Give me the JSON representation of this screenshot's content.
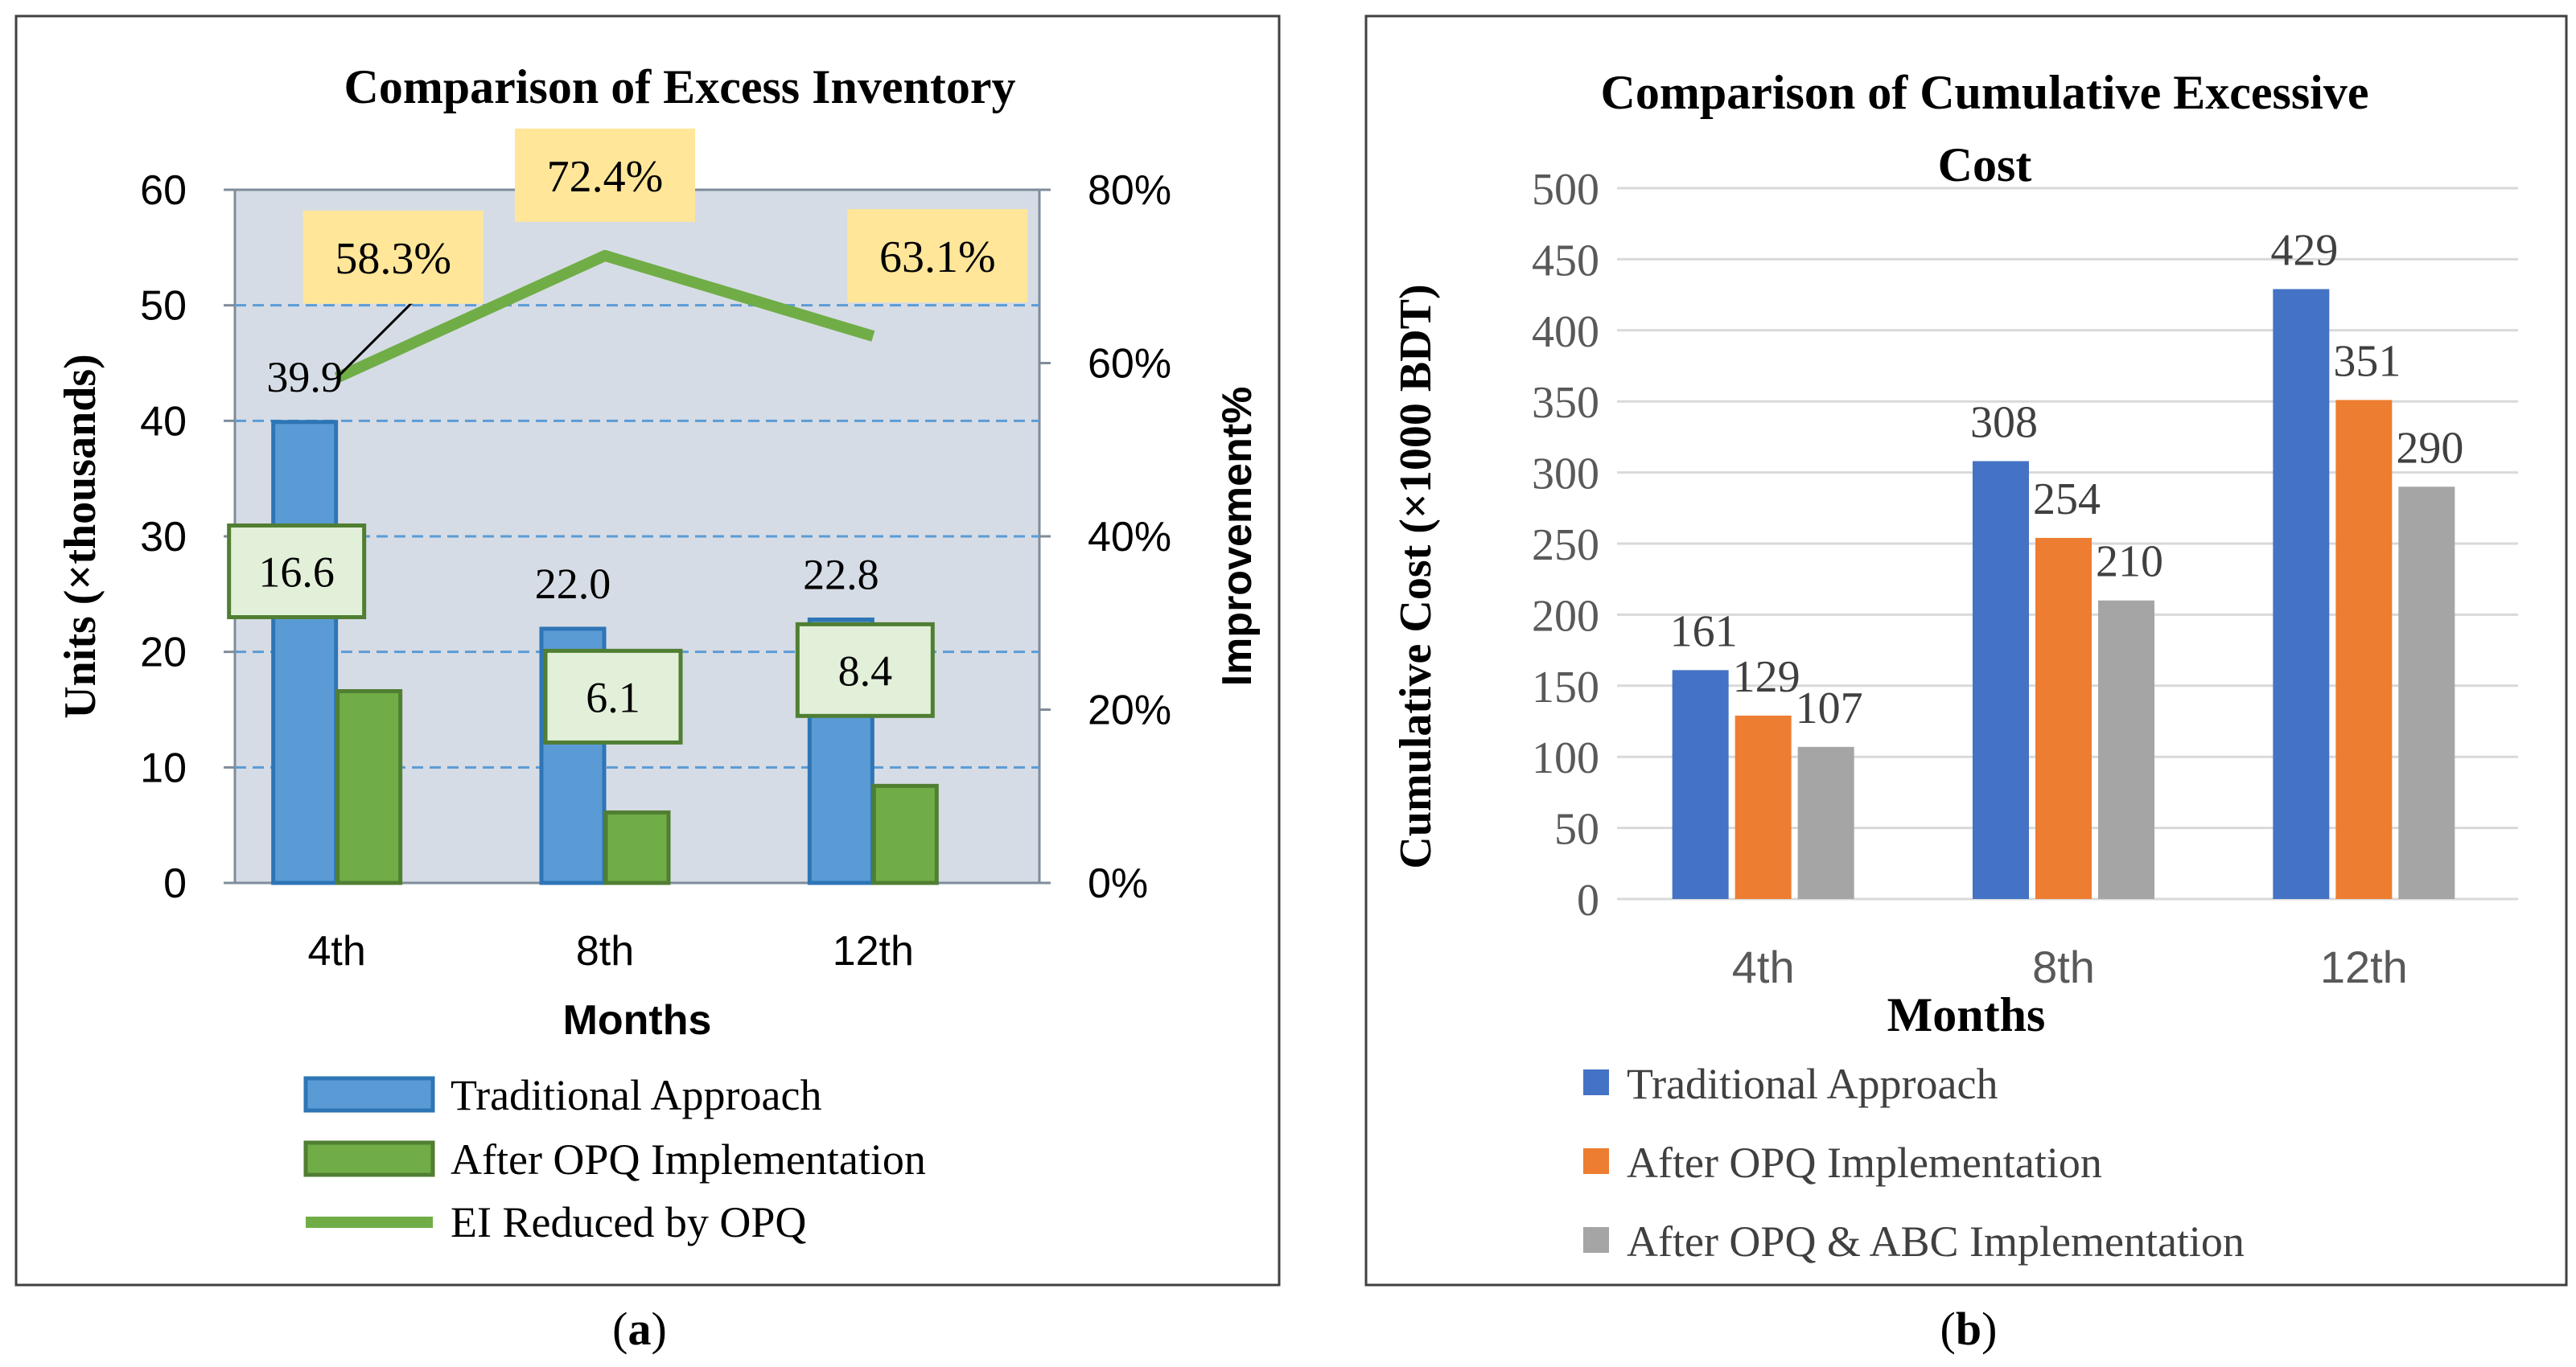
{
  "chart_data": [
    {
      "panel": "a",
      "panel_label_open": "(",
      "panel_label_letter": "a",
      "panel_label_close": ")",
      "type": "bar",
      "title": "Comparison of Excess Inventory",
      "xlabel": "Months",
      "ylabel": "Units (×thousands)",
      "y2label": "Improvement%",
      "categories": [
        "4th",
        "8th",
        "12th"
      ],
      "ylim": [
        0,
        60
      ],
      "yticks": [
        "0",
        "10",
        "20",
        "30",
        "40",
        "50",
        "60"
      ],
      "y2lim": [
        0,
        80
      ],
      "y2ticks": [
        "0%",
        "20%",
        "40%",
        "60%",
        "80%"
      ],
      "grid": true,
      "series": [
        {
          "name": "Traditional Approach",
          "kind": "bar",
          "values": [
            39.9,
            22.0,
            22.8
          ],
          "labels": [
            "39.9",
            "22.0",
            "22.8"
          ],
          "color": "#5b9bd5",
          "stroke": "#2e75b6"
        },
        {
          "name": "After OPQ Implementation",
          "kind": "bar",
          "values": [
            16.6,
            6.1,
            8.4
          ],
          "labels": [
            "16.6",
            "6.1",
            "8.4"
          ],
          "color": "#70ad47",
          "stroke": "#507e32"
        },
        {
          "name": "EI Reduced by OPQ",
          "kind": "line",
          "axis": "secondary",
          "values": [
            58.3,
            72.4,
            63.1
          ],
          "labels": [
            "58.3%",
            "72.4%",
            "63.1%"
          ],
          "color": "#70ad47"
        }
      ],
      "plot_background": "#d6dce5",
      "label_box_yellow": "#ffe699",
      "label_box_green": "#e2f0d9",
      "legend_position": "bottom"
    },
    {
      "panel": "b",
      "panel_label_open": "(",
      "panel_label_letter": "b",
      "panel_label_close": ")",
      "type": "bar",
      "title_lines": [
        "Comparison of Cumulative Excessive",
        "Cost"
      ],
      "xlabel": "Months",
      "ylabel": "Cumulative Cost (×1000 BDT)",
      "categories": [
        "4th",
        "8th",
        "12th"
      ],
      "ylim": [
        0,
        500
      ],
      "yticks": [
        "0",
        "50",
        "100",
        "150",
        "200",
        "250",
        "300",
        "350",
        "400",
        "450",
        "500"
      ],
      "grid": true,
      "series": [
        {
          "name": "Traditional Approach",
          "values": [
            161,
            308,
            429
          ],
          "labels": [
            "161",
            "308",
            "429"
          ],
          "color": "#4472c4"
        },
        {
          "name": "After OPQ Implementation",
          "values": [
            129,
            254,
            351
          ],
          "labels": [
            "129",
            "254",
            "351"
          ],
          "color": "#ed7d31"
        },
        {
          "name": "After OPQ & ABC Implementation",
          "values": [
            107,
            210,
            290
          ],
          "labels": [
            "107",
            "210",
            "290"
          ],
          "color": "#a5a5a5"
        }
      ],
      "legend_position": "bottom"
    }
  ]
}
